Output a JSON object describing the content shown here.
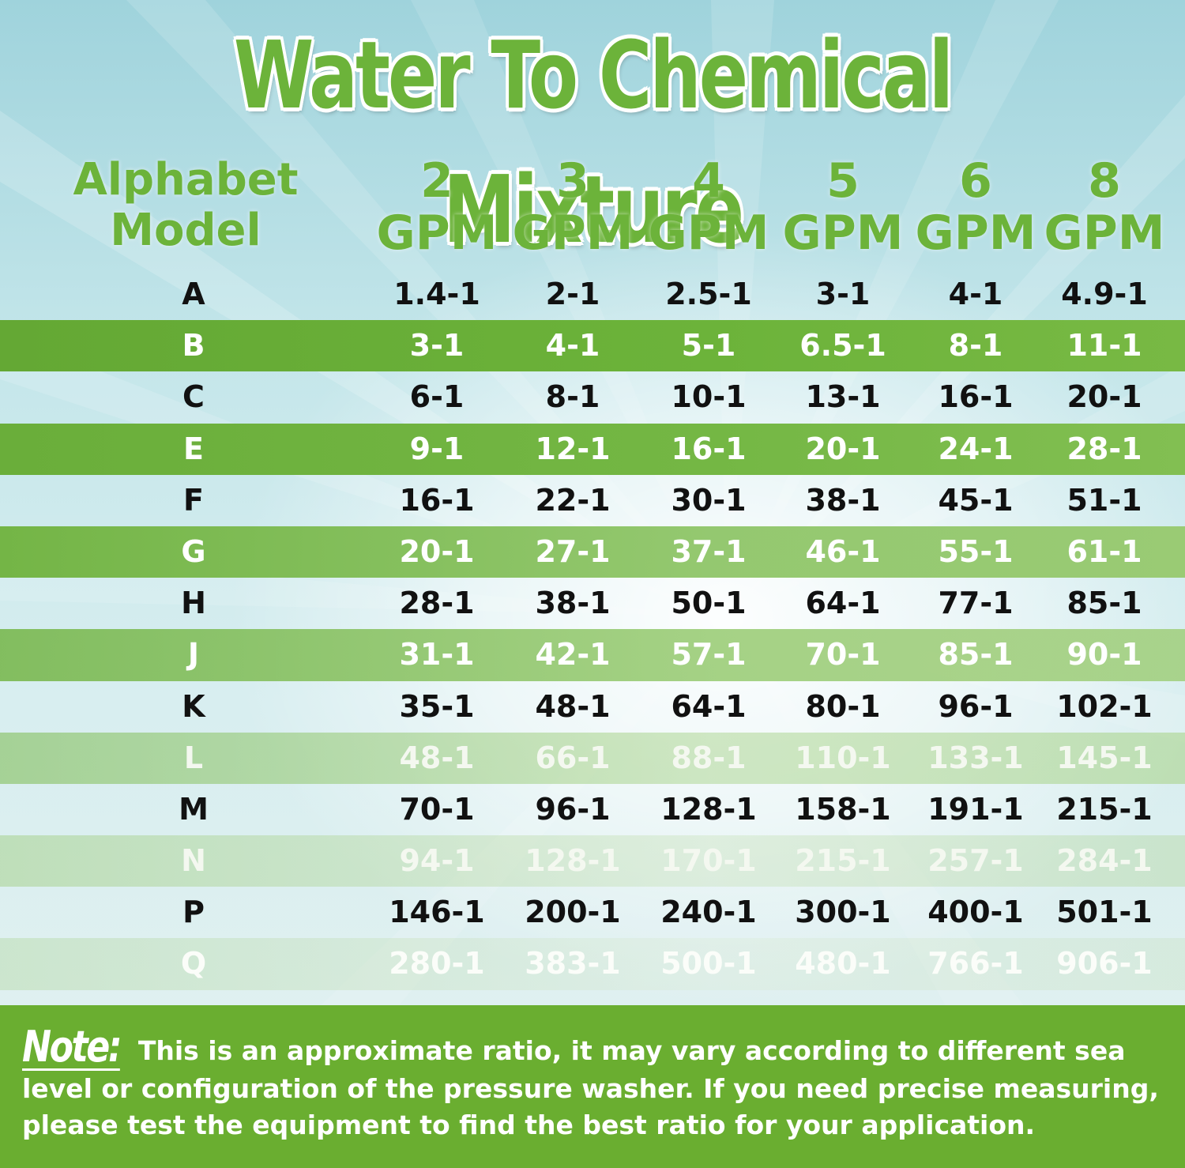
{
  "title": "Water To Chemical Mixture",
  "header": {
    "model_line1": "Alphabet",
    "model_line2": "Model",
    "columns": [
      {
        "num": "2",
        "unit": "GPM"
      },
      {
        "num": "3",
        "unit": "GPM"
      },
      {
        "num": "4",
        "unit": "GPM"
      },
      {
        "num": "5",
        "unit": "GPM"
      },
      {
        "num": "6",
        "unit": "GPM"
      },
      {
        "num": "8",
        "unit": "GPM"
      }
    ]
  },
  "rows": [
    {
      "model": "A",
      "values": [
        "1.4-1",
        "2-1",
        "2.5-1",
        "3-1",
        "4-1",
        "4.9-1"
      ]
    },
    {
      "model": "B",
      "values": [
        "3-1",
        "4-1",
        "5-1",
        "6.5-1",
        "8-1",
        "11-1"
      ]
    },
    {
      "model": "C",
      "values": [
        "6-1",
        "8-1",
        "10-1",
        "13-1",
        "16-1",
        "20-1"
      ]
    },
    {
      "model": "E",
      "values": [
        "9-1",
        "12-1",
        "16-1",
        "20-1",
        "24-1",
        "28-1"
      ]
    },
    {
      "model": "F",
      "values": [
        "16-1",
        "22-1",
        "30-1",
        "38-1",
        "45-1",
        "51-1"
      ]
    },
    {
      "model": "G",
      "values": [
        "20-1",
        "27-1",
        "37-1",
        "46-1",
        "55-1",
        "61-1"
      ]
    },
    {
      "model": "H",
      "values": [
        "28-1",
        "38-1",
        "50-1",
        "64-1",
        "77-1",
        "85-1"
      ]
    },
    {
      "model": "J",
      "values": [
        "31-1",
        "42-1",
        "57-1",
        "70-1",
        "85-1",
        "90-1"
      ]
    },
    {
      "model": "K",
      "values": [
        "35-1",
        "48-1",
        "64-1",
        "80-1",
        "96-1",
        "102-1"
      ]
    },
    {
      "model": "L",
      "values": [
        "48-1",
        "66-1",
        "88-1",
        "110-1",
        "133-1",
        "145-1"
      ]
    },
    {
      "model": "M",
      "values": [
        "70-1",
        "96-1",
        "128-1",
        "158-1",
        "191-1",
        "215-1"
      ]
    },
    {
      "model": "N",
      "values": [
        "94-1",
        "128-1",
        "170-1",
        "215-1",
        "257-1",
        "284-1"
      ]
    },
    {
      "model": "P",
      "values": [
        "146-1",
        "200-1",
        "240-1",
        "300-1",
        "400-1",
        "501-1"
      ]
    },
    {
      "model": "Q",
      "values": [
        "280-1",
        "383-1",
        "500-1",
        "480-1",
        "766-1",
        "906-1"
      ]
    }
  ],
  "note": {
    "label": "Note:",
    "text": "This is an approximate ratio, it may vary according to different sea level or configuration of the pressure washer. If you need precise measuring, please test the equipment to find the best ratio for your application."
  },
  "colors": {
    "brand_green": "#6cb33a",
    "note_background": "#6aae30",
    "text_dark": "#111111",
    "text_light": "#ffffff"
  }
}
